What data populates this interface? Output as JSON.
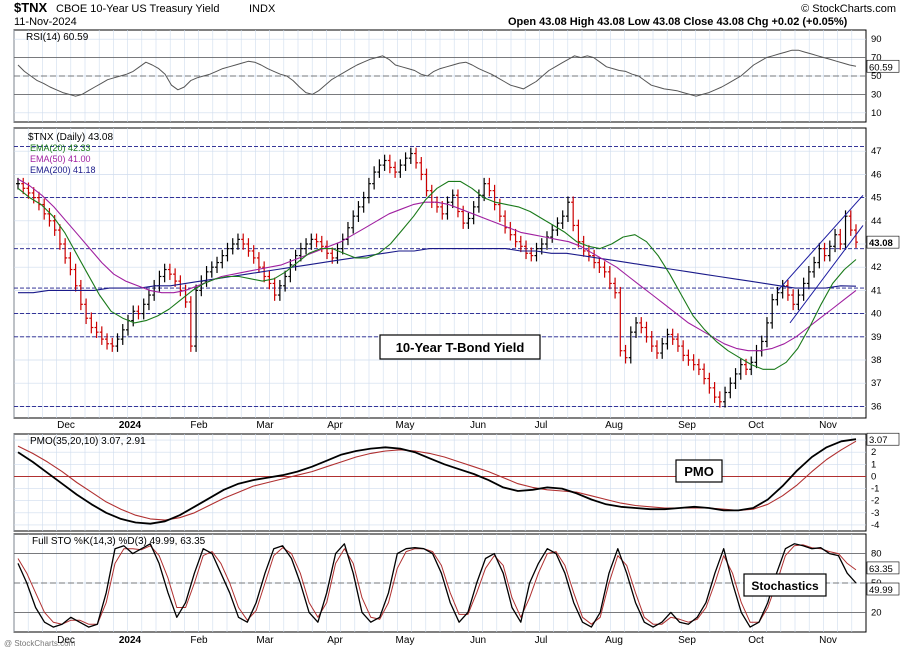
{
  "header": {
    "symbol": "$TNX",
    "name": "CBOE 10-Year US Treasury Yield",
    "exchange": "INDX",
    "date": "11-Nov-2024",
    "ohlc": "Open 43.08  High 43.08  Low 43.08  Close 43.08  Chg +0.02 (+0.05%)",
    "watermark": "© StockCharts.com",
    "attribution": "@ StockCharts.com"
  },
  "colors": {
    "price_up": "#000000",
    "price_down": "#cc0000",
    "ema20": "#1a7a1a",
    "ema50": "#a020a0",
    "ema200": "#1a1a8a",
    "rsi": "#555555",
    "pmo": "#000000",
    "pmo_signal": "#b03030",
    "sto_k": "#000000",
    "sto_d": "#b03030",
    "channel": "#1a1aa0",
    "grid": "#cfdcee",
    "dash_line": "#1a1a8a"
  },
  "x_axis": {
    "labels": [
      "Dec",
      "2024",
      "Feb",
      "Mar",
      "Apr",
      "May",
      "Jun",
      "Jul",
      "Aug",
      "Sep",
      "Oct",
      "Nov"
    ]
  },
  "annotations": {
    "price": "10-Year T-Bond Yield",
    "pmo": "PMO",
    "sto": "Stochastics"
  },
  "chart_data": [
    {
      "panel": "rsi",
      "type": "line",
      "label": "RSI(14) 60.59",
      "ylim": [
        0,
        100
      ],
      "yticks": [
        10,
        30,
        50,
        70,
        90
      ],
      "last": "60.59",
      "reference_lines": [
        30,
        50,
        70
      ],
      "series": [
        {
          "values": [
            62,
            55,
            50,
            45,
            42,
            38,
            35,
            32,
            30,
            28,
            30,
            34,
            38,
            42,
            46,
            48,
            50,
            52,
            55,
            60,
            65,
            62,
            58,
            52,
            40,
            35,
            38,
            45,
            48,
            50,
            52,
            55,
            58,
            60,
            62,
            64,
            66,
            65,
            62,
            58,
            55,
            52,
            50,
            45,
            38,
            32,
            30,
            34,
            40,
            46,
            50,
            54,
            58,
            62,
            65,
            68,
            70,
            72,
            68,
            62,
            60,
            58,
            56,
            52,
            50,
            55,
            58,
            60,
            62,
            64,
            65,
            62,
            58,
            55,
            52,
            48,
            44,
            40,
            38,
            36,
            40,
            44,
            50,
            56,
            60,
            64,
            68,
            72,
            70,
            72,
            70,
            65,
            60,
            58,
            56,
            55,
            52,
            50,
            45,
            40,
            38,
            36,
            35,
            34,
            32,
            30,
            28,
            30,
            32,
            35,
            38,
            42,
            46,
            50,
            56,
            62,
            66,
            70,
            72,
            74,
            76,
            78,
            78,
            76,
            74,
            72,
            70,
            68,
            66,
            64,
            62,
            60.59
          ]
        }
      ]
    },
    {
      "panel": "price",
      "type": "ohlc",
      "label": "$TNX (Daily) 43.08",
      "ylim": [
        35.5,
        48
      ],
      "yticks": [
        36,
        37,
        38,
        39,
        40,
        41,
        42,
        43,
        44,
        45,
        46,
        47
      ],
      "last_price": "43.08",
      "dashed_levels": [
        36.0,
        39.0,
        40.0,
        41.1,
        42.8,
        45.0,
        47.2
      ],
      "close": [
        45.6,
        45.4,
        45.2,
        45.0,
        44.7,
        44.3,
        44.0,
        43.6,
        43.0,
        42.4,
        41.9,
        41.2,
        40.4,
        39.8,
        39.4,
        39.2,
        38.9,
        38.7,
        38.6,
        38.9,
        39.3,
        39.7,
        40.1,
        40.0,
        40.4,
        40.8,
        41.2,
        41.6,
        41.9,
        41.7,
        41.4,
        41.0,
        40.5,
        38.6,
        41.0,
        41.4,
        41.8,
        42.0,
        42.2,
        42.5,
        42.8,
        43.0,
        43.2,
        43.0,
        42.7,
        42.4,
        42.0,
        41.6,
        41.3,
        40.8,
        41.2,
        41.6,
        42.1,
        42.5,
        42.8,
        43.0,
        43.2,
        43.1,
        42.9,
        42.6,
        42.4,
        42.8,
        43.2,
        43.7,
        44.2,
        44.6,
        45.0,
        45.6,
        46.1,
        46.4,
        46.6,
        46.3,
        46.1,
        46.4,
        46.7,
        46.9,
        46.5,
        46.0,
        45.3,
        44.8,
        44.6,
        44.3,
        44.8,
        45.1,
        44.4,
        43.9,
        44.1,
        44.6,
        45.1,
        45.6,
        45.3,
        44.7,
        44.2,
        43.7,
        43.4,
        43.1,
        42.9,
        42.6,
        42.5,
        42.8,
        43.0,
        43.3,
        43.6,
        43.9,
        44.2,
        44.8,
        43.8,
        43.1,
        42.7,
        42.5,
        42.2,
        42.0,
        41.8,
        41.3,
        40.9,
        38.4,
        38.1,
        39.2,
        39.6,
        39.4,
        39.0,
        38.6,
        38.3,
        38.7,
        39.1,
        38.9,
        38.6,
        38.2,
        38.0,
        37.8,
        37.6,
        37.2,
        36.8,
        36.4,
        36.2,
        36.6,
        37.0,
        37.4,
        37.8,
        37.6,
        37.9,
        38.4,
        38.8,
        39.6,
        40.6,
        40.9,
        41.2,
        40.8,
        40.4,
        40.8,
        41.3,
        41.8,
        42.2,
        42.8,
        42.5,
        42.9,
        43.4,
        43.0,
        44.2,
        43.6,
        43.08
      ]
    },
    {
      "panel": "price",
      "type": "line",
      "series": [
        {
          "name": "EMA(20) 42.33",
          "values": [
            45.4,
            45.0,
            44.7,
            44.2,
            43.5,
            42.6,
            41.7,
            40.8,
            40.1,
            39.8,
            39.6,
            39.7,
            39.9,
            40.2,
            40.6,
            41.0,
            41.3,
            41.5,
            41.6,
            41.6,
            41.5,
            41.4,
            41.5,
            41.8,
            42.2,
            42.6,
            42.8,
            42.8,
            42.6,
            42.4,
            42.4,
            42.6,
            43.0,
            43.6,
            44.2,
            44.9,
            45.4,
            45.7,
            45.7,
            45.4,
            45.0,
            44.8,
            44.7,
            44.6,
            44.4,
            44.1,
            43.8,
            43.5,
            43.1,
            42.9,
            42.8,
            43.0,
            43.3,
            43.4,
            43.1,
            42.5,
            41.7,
            40.8,
            39.9,
            39.3,
            38.8,
            38.4,
            38.1,
            37.8,
            37.6,
            37.6,
            37.9,
            38.5,
            39.4,
            40.4,
            41.3,
            41.9,
            42.33
          ]
        },
        {
          "name": "EMA(50) 41.00",
          "values": [
            45.8,
            45.5,
            45.1,
            44.6,
            44.0,
            43.4,
            42.8,
            42.2,
            41.7,
            41.4,
            41.2,
            41.0,
            40.9,
            40.9,
            41.0,
            41.2,
            41.4,
            41.6,
            41.7,
            41.8,
            41.9,
            42.0,
            42.1,
            42.3,
            42.5,
            42.7,
            42.9,
            43.1,
            43.4,
            43.7,
            44.0,
            44.3,
            44.5,
            44.7,
            44.8,
            44.8,
            44.7,
            44.5,
            44.3,
            44.1,
            43.9,
            43.7,
            43.5,
            43.4,
            43.3,
            43.2,
            43.1,
            42.9,
            42.6,
            42.3,
            42.0,
            41.6,
            41.2,
            40.8,
            40.4,
            40.0,
            39.6,
            39.3,
            39.0,
            38.7,
            38.5,
            38.4,
            38.4,
            38.5,
            38.7,
            39.0,
            39.4,
            39.8,
            40.2,
            40.6,
            41.0
          ]
        },
        {
          "name": "EMA(200) 41.18",
          "values": [
            40.9,
            40.9,
            41.0,
            41.0,
            41.0,
            41.0,
            41.1,
            41.1,
            41.1,
            41.2,
            41.2,
            41.3,
            41.4,
            41.5,
            41.6,
            41.7,
            41.8,
            41.9,
            42.0,
            42.1,
            42.2,
            42.3,
            42.4,
            42.5,
            42.6,
            42.7,
            42.7,
            42.8,
            42.8,
            42.8,
            42.8,
            42.8,
            42.8,
            42.7,
            42.7,
            42.6,
            42.6,
            42.5,
            42.4,
            42.3,
            42.2,
            42.1,
            42.0,
            41.9,
            41.8,
            41.7,
            41.6,
            41.5,
            41.4,
            41.3,
            41.2,
            41.1,
            41.1,
            41.1,
            41.2,
            41.18
          ]
        }
      ]
    },
    {
      "panel": "pmo",
      "type": "line",
      "label": "PMO(35,20,10) 3.07, 2.91",
      "ylim": [
        -4.5,
        3.5
      ],
      "yticks": [
        -4,
        -3,
        -2,
        -1,
        0,
        1,
        2,
        3
      ],
      "last_pmo": "3.07",
      "series": [
        {
          "name": "PMO",
          "values": [
            2.0,
            1.2,
            0.3,
            -0.6,
            -1.5,
            -2.3,
            -3.0,
            -3.5,
            -3.8,
            -3.9,
            -3.7,
            -3.2,
            -2.5,
            -1.8,
            -1.1,
            -0.6,
            -0.3,
            -0.1,
            0.1,
            0.4,
            0.8,
            1.3,
            1.8,
            2.1,
            2.3,
            2.4,
            2.3,
            2.0,
            1.5,
            1.0,
            0.6,
            0.2,
            -0.3,
            -0.9,
            -1.2,
            -1.1,
            -0.9,
            -1.0,
            -1.4,
            -1.9,
            -2.3,
            -2.5,
            -2.6,
            -2.7,
            -2.7,
            -2.6,
            -2.5,
            -2.6,
            -2.8,
            -2.8,
            -2.6,
            -1.9,
            -0.8,
            0.5,
            1.6,
            2.4,
            2.9,
            3.07
          ]
        },
        {
          "name": "Signal",
          "values": [
            2.5,
            1.9,
            1.2,
            0.4,
            -0.5,
            -1.3,
            -2.1,
            -2.7,
            -3.2,
            -3.5,
            -3.6,
            -3.4,
            -3.0,
            -2.4,
            -1.8,
            -1.3,
            -0.8,
            -0.5,
            -0.2,
            0.1,
            0.4,
            0.8,
            1.2,
            1.6,
            1.9,
            2.1,
            2.2,
            2.1,
            1.9,
            1.6,
            1.2,
            0.8,
            0.4,
            -0.1,
            -0.6,
            -0.9,
            -1.1,
            -1.2,
            -1.3,
            -1.6,
            -1.9,
            -2.2,
            -2.4,
            -2.5,
            -2.6,
            -2.6,
            -2.6,
            -2.6,
            -2.7,
            -2.8,
            -2.7,
            -2.3,
            -1.6,
            -0.7,
            0.4,
            1.4,
            2.2,
            2.91
          ]
        }
      ]
    },
    {
      "panel": "sto",
      "type": "line",
      "label": "Full STO %K(14,3) %D(3) 49.99, 63.35",
      "ylim": [
        0,
        100
      ],
      "yticks": [
        20,
        50,
        80
      ],
      "last_k": "49.99",
      "last_d": "63.35",
      "series": [
        {
          "name": "%K",
          "values": [
            70,
            50,
            25,
            10,
            5,
            8,
            15,
            10,
            5,
            8,
            40,
            85,
            88,
            80,
            85,
            90,
            70,
            40,
            15,
            30,
            60,
            85,
            80,
            60,
            40,
            15,
            10,
            30,
            60,
            85,
            88,
            75,
            50,
            20,
            10,
            40,
            80,
            90,
            60,
            20,
            10,
            15,
            40,
            80,
            85,
            86,
            85,
            80,
            60,
            30,
            10,
            20,
            50,
            75,
            80,
            60,
            25,
            10,
            50,
            70,
            85,
            80,
            60,
            30,
            10,
            5,
            20,
            60,
            85,
            60,
            30,
            10,
            5,
            10,
            20,
            10,
            8,
            15,
            30,
            60,
            85,
            50,
            20,
            5,
            10,
            30,
            60,
            85,
            90,
            88,
            85,
            86,
            80,
            78,
            60,
            49.99
          ]
        },
        {
          "name": "%D",
          "values": [
            75,
            60,
            40,
            20,
            10,
            8,
            12,
            12,
            8,
            8,
            30,
            70,
            85,
            85,
            84,
            88,
            78,
            55,
            25,
            25,
            50,
            78,
            82,
            70,
            50,
            25,
            12,
            22,
            50,
            78,
            86,
            80,
            60,
            30,
            15,
            30,
            70,
            85,
            70,
            35,
            15,
            13,
            30,
            65,
            82,
            85,
            85,
            82,
            68,
            40,
            18,
            18,
            40,
            65,
            78,
            68,
            35,
            15,
            35,
            60,
            80,
            82,
            68,
            40,
            15,
            8,
            15,
            50,
            78,
            68,
            40,
            15,
            8,
            8,
            15,
            13,
            10,
            13,
            25,
            50,
            78,
            60,
            30,
            10,
            10,
            25,
            50,
            78,
            88,
            89,
            86,
            85,
            82,
            80,
            70,
            63.35
          ]
        }
      ]
    }
  ]
}
